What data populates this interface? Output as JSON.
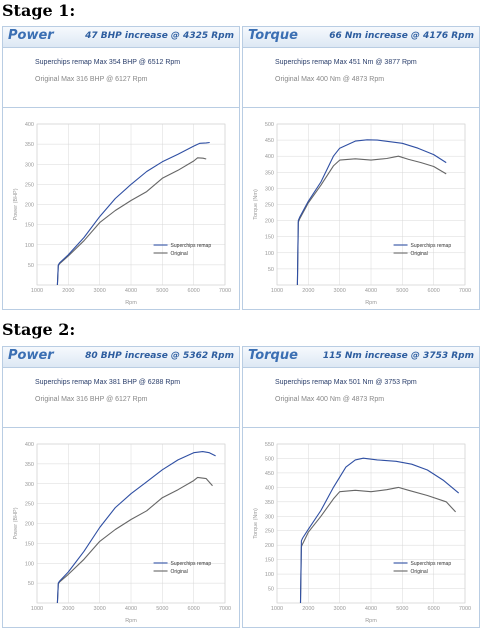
{
  "stages": [
    {
      "title": "Stage 1:",
      "panels": [
        {
          "name": "Power",
          "increase": "47 BHP increase @ 4325 Rpm",
          "remap_line": "Superchips remap Max 354 BHP @ 6512 Rpm",
          "original_line": "Original Max 316 BHP @ 6127 Rpm",
          "chart_data": {
            "type": "line",
            "xlabel": "Rpm",
            "ylabel": "Power (BHP)",
            "xlim": [
              1000,
              7000
            ],
            "ylim": [
              0,
              400
            ],
            "xticks": [
              1000,
              2000,
              3000,
              4000,
              5000,
              6000,
              7000
            ],
            "yticks": [
              50,
              100,
              150,
              200,
              250,
              300,
              350,
              400
            ],
            "grid": true,
            "legend": "bottom-right",
            "series": [
              {
                "name": "Superchips remap",
                "color": "#2f4fa3",
                "x": [
                  1650,
                  1680,
                  1720,
                  2000,
                  2500,
                  3000,
                  3500,
                  4000,
                  4500,
                  5000,
                  5500,
                  6000,
                  6200,
                  6400,
                  6512
                ],
                "y": [
                  0,
                  50,
                  55,
                  75,
                  118,
                  170,
                  215,
                  250,
                  282,
                  306,
                  325,
                  345,
                  352,
                  353,
                  354
                ]
              },
              {
                "name": "Original",
                "color": "#666666",
                "x": [
                  1650,
                  1680,
                  1720,
                  2000,
                  2500,
                  3000,
                  3500,
                  4000,
                  4500,
                  5000,
                  5500,
                  6000,
                  6127,
                  6300,
                  6400
                ],
                "y": [
                  0,
                  48,
                  53,
                  72,
                  110,
                  155,
                  185,
                  210,
                  232,
                  265,
                  285,
                  308,
                  316,
                  315,
                  313
                ]
              }
            ]
          }
        },
        {
          "name": "Torque",
          "increase": "66 Nm increase @ 4176 Rpm",
          "remap_line": "Superchips remap Max 451 Nm @ 3877 Rpm",
          "original_line": "Original Max 400 Nm @ 4873 Rpm",
          "chart_data": {
            "type": "line",
            "xlabel": "Rpm",
            "ylabel": "Torque (Nm)",
            "xlim": [
              1000,
              7000
            ],
            "ylim": [
              0,
              500
            ],
            "xticks": [
              1000,
              2000,
              3000,
              4000,
              5000,
              6000,
              7000
            ],
            "yticks": [
              50,
              100,
              150,
              200,
              250,
              300,
              350,
              400,
              450,
              500
            ],
            "grid": true,
            "legend": "bottom-right",
            "series": [
              {
                "name": "Superchips remap",
                "color": "#2f4fa3",
                "x": [
                  1650,
                  1680,
                  1720,
                  2000,
                  2400,
                  2800,
                  3000,
                  3500,
                  3877,
                  4200,
                  4600,
                  5000,
                  5500,
                  6000,
                  6400
                ],
                "y": [
                  0,
                  200,
                  210,
                  260,
                  320,
                  400,
                  425,
                  447,
                  451,
                  450,
                  445,
                  440,
                  425,
                  405,
                  380
                ]
              },
              {
                "name": "Original",
                "color": "#666666",
                "x": [
                  1650,
                  1680,
                  1720,
                  2000,
                  2400,
                  2800,
                  3000,
                  3500,
                  4000,
                  4500,
                  4873,
                  5200,
                  5600,
                  6000,
                  6400
                ],
                "y": [
                  0,
                  195,
                  205,
                  255,
                  310,
                  370,
                  388,
                  392,
                  388,
                  393,
                  400,
                  390,
                  380,
                  368,
                  345
                ]
              }
            ]
          }
        }
      ]
    },
    {
      "title": "Stage 2:",
      "panels": [
        {
          "name": "Power",
          "increase": "80 BHP increase @ 5362 Rpm",
          "remap_line": "Superchips remap Max 381 BHP @ 6288 Rpm",
          "original_line": "Original Max 316 BHP @ 6127 Rpm",
          "chart_data": {
            "type": "line",
            "xlabel": "Rpm",
            "ylabel": "Power (BHP)",
            "xlim": [
              1000,
              7000
            ],
            "ylim": [
              0,
              400
            ],
            "xticks": [
              1000,
              2000,
              3000,
              4000,
              5000,
              6000,
              7000
            ],
            "yticks": [
              50,
              100,
              150,
              200,
              250,
              300,
              350,
              400
            ],
            "grid": true,
            "legend": "bottom-right",
            "series": [
              {
                "name": "Superchips remap",
                "color": "#2f4fa3",
                "x": [
                  1650,
                  1680,
                  1720,
                  2000,
                  2500,
                  3000,
                  3500,
                  4000,
                  4500,
                  5000,
                  5500,
                  6000,
                  6288,
                  6500,
                  6700
                ],
                "y": [
                  0,
                  50,
                  55,
                  78,
                  130,
                  190,
                  240,
                  275,
                  305,
                  335,
                  360,
                  378,
                  381,
                  378,
                  370
                ]
              },
              {
                "name": "Original",
                "color": "#666666",
                "x": [
                  1650,
                  1680,
                  1720,
                  2000,
                  2500,
                  3000,
                  3500,
                  4000,
                  4500,
                  5000,
                  5500,
                  6000,
                  6127,
                  6400,
                  6600
                ],
                "y": [
                  0,
                  48,
                  53,
                  72,
                  110,
                  155,
                  185,
                  210,
                  232,
                  265,
                  285,
                  308,
                  316,
                  313,
                  295
                ]
              }
            ]
          }
        },
        {
          "name": "Torque",
          "increase": "115 Nm increase @ 3753 Rpm",
          "remap_line": "Superchips remap Max 501 Nm @ 3753 Rpm",
          "original_line": "Original Max 400 Nm @ 4873 Rpm",
          "chart_data": {
            "type": "line",
            "xlabel": "Rpm",
            "ylabel": "Torque (Nm)",
            "xlim": [
              1000,
              7000
            ],
            "ylim": [
              0,
              550
            ],
            "xticks": [
              1000,
              2000,
              3000,
              4000,
              5000,
              6000,
              7000
            ],
            "yticks": [
              50,
              100,
              150,
              200,
              250,
              300,
              350,
              400,
              450,
              500,
              550
            ],
            "grid": true,
            "legend": "bottom-right",
            "series": [
              {
                "name": "Superchips remap",
                "color": "#2f4fa3",
                "x": [
                  1750,
                  1780,
                  1820,
                  2000,
                  2400,
                  2800,
                  3200,
                  3500,
                  3753,
                  4200,
                  4800,
                  5300,
                  5800,
                  6300,
                  6800
                ],
                "y": [
                  0,
                  215,
                  225,
                  255,
                  320,
                  400,
                  470,
                  495,
                  501,
                  495,
                  490,
                  480,
                  460,
                  425,
                  380
                ]
              },
              {
                "name": "Original",
                "color": "#666666",
                "x": [
                  1750,
                  1780,
                  1820,
                  2000,
                  2400,
                  2800,
                  3000,
                  3500,
                  4000,
                  4500,
                  4873,
                  5200,
                  5800,
                  6400,
                  6700
                ],
                "y": [
                  0,
                  195,
                  205,
                  245,
                  300,
                  360,
                  385,
                  390,
                  385,
                  392,
                  400,
                  390,
                  372,
                  350,
                  315
                ]
              }
            ]
          }
        }
      ]
    }
  ]
}
